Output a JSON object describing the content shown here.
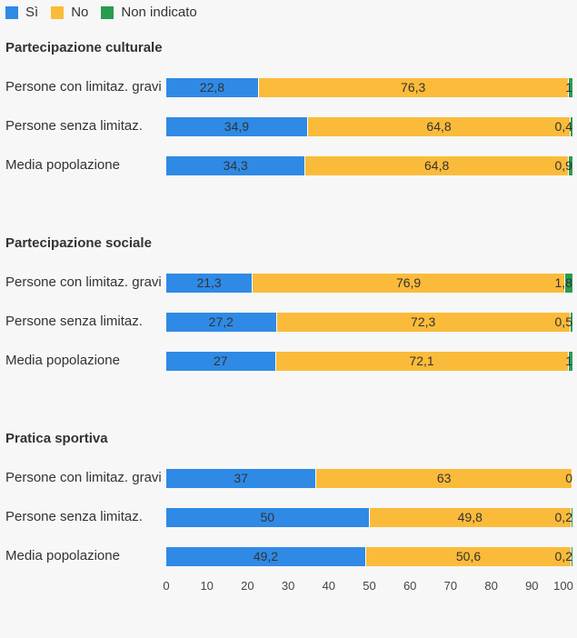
{
  "legend": [
    {
      "label": "Sì",
      "color": "#2f8ae6"
    },
    {
      "label": "No",
      "color": "#fbbb3a"
    },
    {
      "label": "Non indicato",
      "color": "#2a9c4f"
    }
  ],
  "chart_data": {
    "type": "bar",
    "orientation": "horizontal",
    "stacked": true,
    "xlim": [
      0,
      100
    ],
    "xticks": [
      0,
      10,
      20,
      30,
      40,
      50,
      60,
      70,
      80,
      90,
      100
    ],
    "groups": [
      {
        "title": "Partecipazione culturale",
        "rows": [
          {
            "label": "Persone con limitaz. gravi",
            "values": [
              22.8,
              76.3,
              1
            ],
            "labels": [
              "22,8",
              "76,3",
              "1"
            ]
          },
          {
            "label": "Persone senza limitaz.",
            "values": [
              34.9,
              64.8,
              0.4
            ],
            "labels": [
              "34,9",
              "64,8",
              "0,4"
            ]
          },
          {
            "label": "Media popolazione",
            "values": [
              34.3,
              64.8,
              0.9
            ],
            "labels": [
              "34,3",
              "64,8",
              "0,9"
            ]
          }
        ]
      },
      {
        "title": "Partecipazione sociale",
        "rows": [
          {
            "label": "Persone con limitaz. gravi",
            "values": [
              21.3,
              76.9,
              1.8
            ],
            "labels": [
              "21,3",
              "76,9",
              "1,8"
            ]
          },
          {
            "label": "Persone senza limitaz.",
            "values": [
              27.2,
              72.3,
              0.5
            ],
            "labels": [
              "27,2",
              "72,3",
              "0,5"
            ]
          },
          {
            "label": "Media popolazione",
            "values": [
              27,
              72.1,
              1
            ],
            "labels": [
              "27",
              "72,1",
              "1"
            ]
          }
        ]
      },
      {
        "title": "Pratica sportiva",
        "rows": [
          {
            "label": "Persone con limitaz. gravi",
            "values": [
              37,
              63,
              0
            ],
            "labels": [
              "37",
              "63",
              "0"
            ]
          },
          {
            "label": "Persone senza limitaz.",
            "values": [
              50,
              49.8,
              0.2
            ],
            "labels": [
              "50",
              "49,8",
              "0,2"
            ]
          },
          {
            "label": "Media popolazione",
            "values": [
              49.2,
              50.6,
              0.2
            ],
            "labels": [
              "49,2",
              "50,6",
              "0,2"
            ]
          }
        ]
      }
    ]
  }
}
